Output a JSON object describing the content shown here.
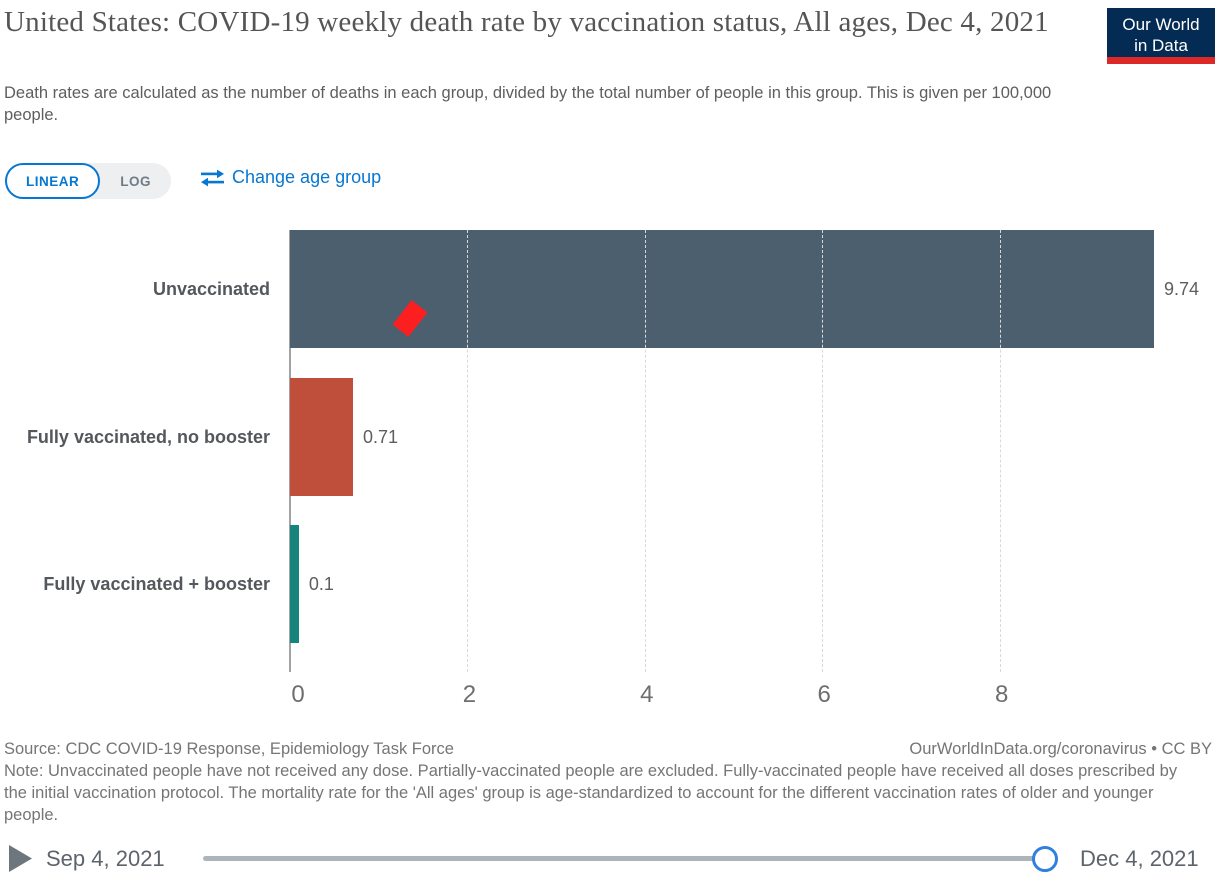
{
  "header": {
    "title": "United States: COVID-19 weekly death rate by vaccination status, All ages, Dec 4, 2021",
    "subtitle": "Death rates are calculated as the number of deaths in each group, divided by the total number of people in this group. This is given per 100,000 people.",
    "logo": {
      "line1": "Our World",
      "line2": "in Data",
      "bg_color": "#042b53",
      "stripe_color": "#dc2927"
    }
  },
  "controls": {
    "linear_label": "LINEAR",
    "log_label": "LOG",
    "selected_scale": "LINEAR",
    "change_age_group_label": "Change age group"
  },
  "chart_data": {
    "type": "bar",
    "orientation": "horizontal",
    "title": "United States: COVID-19 weekly death rate by vaccination status, All ages, Dec 4, 2021",
    "unit": "deaths per 100,000 people",
    "categories": [
      "Unvaccinated",
      "Fully vaccinated, no booster",
      "Fully vaccinated + booster"
    ],
    "values": [
      9.74,
      0.71,
      0.1
    ],
    "value_labels": [
      "9.74",
      "0.71",
      "0.1"
    ],
    "bar_colors": [
      "#4c5f6f",
      "#bf4e3a",
      "#17847c"
    ],
    "x_ticks": [
      "0",
      "2",
      "4",
      "6",
      "8"
    ],
    "xlim": [
      0,
      9.74
    ],
    "grid": "dashed vertical gridlines",
    "scale": "linear"
  },
  "marker": {
    "color": "#fb1f1f"
  },
  "footer": {
    "source": "Source: CDC COVID-19 Response, Epidemiology Task Force",
    "attribution": "OurWorldInData.org/coronavirus • CC BY",
    "note": "Note: Unvaccinated people have not received any dose. Partially-vaccinated people are excluded. Fully-vaccinated people have received all doses prescribed by the initial vaccination protocol. The mortality rate for the 'All ages' group is age-standardized to account for the different vaccination rates of older and younger people."
  },
  "timeline": {
    "start_label": "Sep 4, 2021",
    "end_label": "Dec 4, 2021",
    "track_color": "#adb5bc",
    "handle_border_color": "#3080e0",
    "play_color": "#6e767d"
  },
  "colors": {
    "accent_blue": "#0677d2"
  }
}
